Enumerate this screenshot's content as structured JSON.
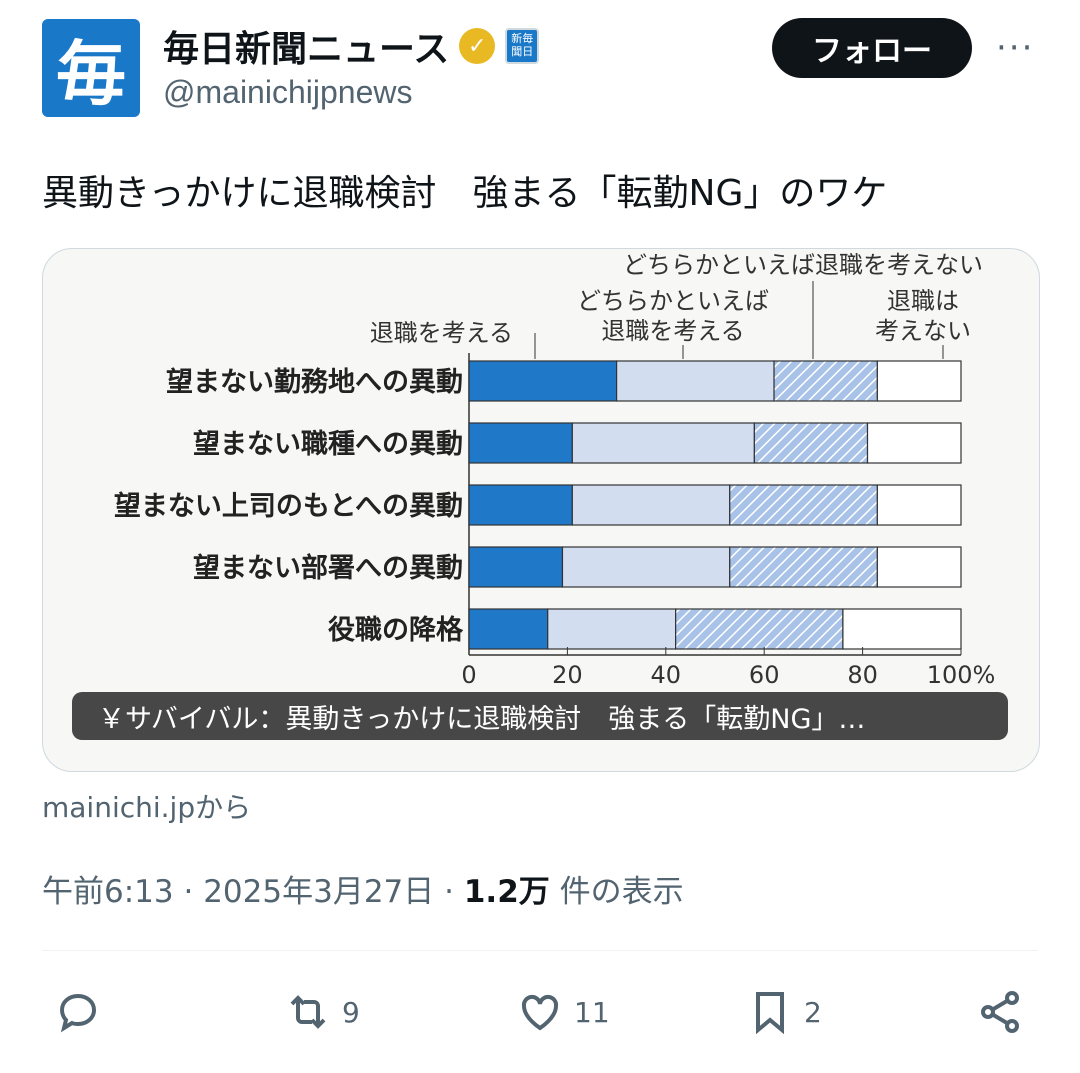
{
  "account": {
    "avatar_text": "毎",
    "name": "毎日新聞ニュース",
    "handle": "@mainichijpnews",
    "affiliate_text": "新毎聞日",
    "verified_color": "#e8b923",
    "avatar_color": "#1a78c8"
  },
  "follow_label": "フォロー",
  "more_label": "···",
  "tweet_text": "異動きっかけに退職検討　強まる「転勤NG」のワケ",
  "card": {
    "caption": "￥サバイバル：異動きっかけに退職検討　強まる「転勤NG」…",
    "source": "mainichi.jpから"
  },
  "chart_data": {
    "type": "bar",
    "stacked": true,
    "orientation": "horizontal",
    "categories": [
      "望まない勤務地への異動",
      "望まない職種への異動",
      "望まない上司のもとへの異動",
      "望まない部署への異動",
      "役職の降格"
    ],
    "series": [
      {
        "name": "退職を考える",
        "values": [
          30,
          21,
          21,
          19,
          16
        ],
        "color": "#1f78c8"
      },
      {
        "name": "どちらかといえば退職を考える",
        "values": [
          32,
          37,
          32,
          34,
          26
        ],
        "color": "#d2ddf0"
      },
      {
        "name": "どちらかといえば退職を考えない",
        "values": [
          21,
          23,
          30,
          30,
          34
        ],
        "color": "#a9c3e8",
        "pattern": "hatched"
      },
      {
        "name": "退職は考えない",
        "values": [
          17,
          19,
          17,
          17,
          24
        ],
        "color": "#ffffff"
      }
    ],
    "xticks": [
      "0",
      "20",
      "40",
      "60",
      "80",
      "100%"
    ],
    "xlim": [
      0,
      100
    ]
  },
  "meta": {
    "time": "午前6:13",
    "date": "2025年3月27日",
    "views": "1.2万",
    "views_label": "件の表示",
    "sep": "·"
  },
  "actions": {
    "retweets": "9",
    "likes": "11",
    "bookmarks": "2"
  }
}
